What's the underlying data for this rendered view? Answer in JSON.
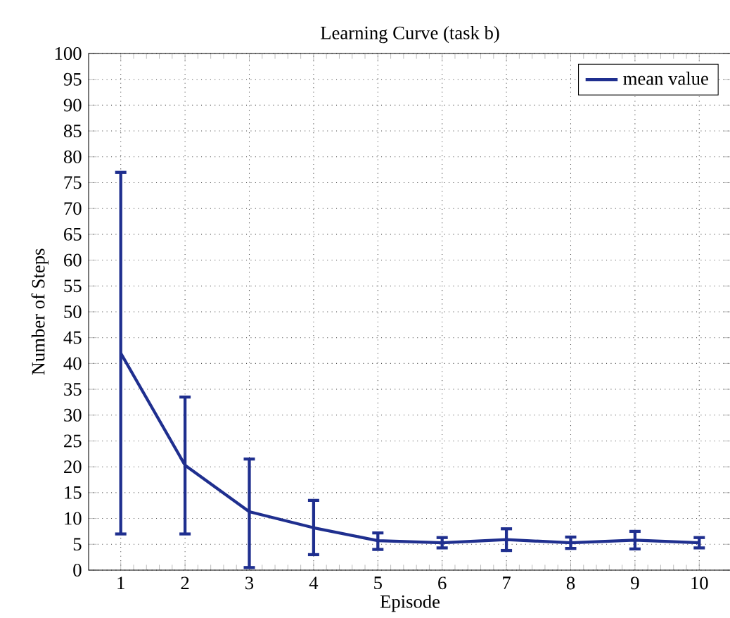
{
  "chart_data": {
    "type": "line",
    "title": "Learning Curve (task b)",
    "xlabel": "Episode",
    "ylabel": "Number of Steps",
    "x": [
      1,
      2,
      3,
      4,
      5,
      6,
      7,
      8,
      9,
      10
    ],
    "series": [
      {
        "name": "mean value",
        "color": "#1f2f8f",
        "values": [
          42,
          20.3,
          11.3,
          8.2,
          5.7,
          5.3,
          5.9,
          5.3,
          5.8,
          5.3
        ],
        "errors": [
          [
            7,
            77
          ],
          [
            7,
            33.5
          ],
          [
            0.5,
            21.5
          ],
          [
            3,
            13.5
          ],
          [
            4,
            7.2
          ],
          [
            4.3,
            6.3
          ],
          [
            3.8,
            8
          ],
          [
            4.2,
            6.4
          ],
          [
            4.1,
            7.5
          ],
          [
            4.3,
            6.3
          ]
        ]
      }
    ],
    "xlim": [
      0.5,
      10.5
    ],
    "xticks": [
      1,
      2,
      3,
      4,
      5,
      6,
      7,
      8,
      9,
      10
    ],
    "ylim": [
      0,
      100
    ],
    "yticks": [
      0,
      5,
      10,
      15,
      20,
      25,
      30,
      35,
      40,
      45,
      50,
      55,
      60,
      65,
      70,
      75,
      80,
      85,
      90,
      95,
      100
    ],
    "grid": true,
    "legend": "top right",
    "marker": "none",
    "line_style": "solid"
  }
}
